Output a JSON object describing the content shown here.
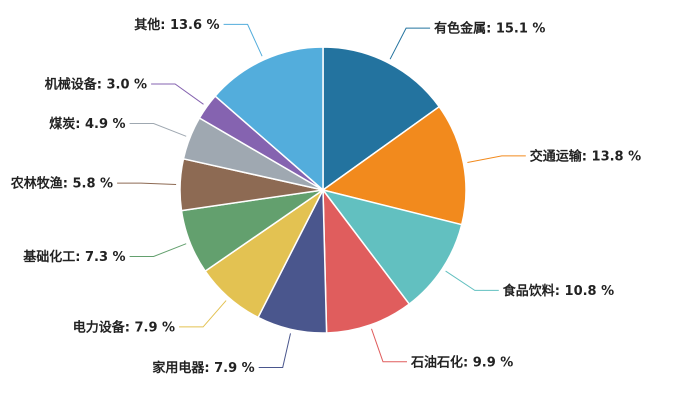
{
  "chart_data": {
    "type": "pie",
    "title": "",
    "slices": [
      {
        "label": "有色金属",
        "value": 15.1,
        "color": "#23739f"
      },
      {
        "label": "交通运输",
        "value": 13.8,
        "color": "#f28a1d"
      },
      {
        "label": "食品饮料",
        "value": 10.8,
        "color": "#62c0c0"
      },
      {
        "label": "石油石化",
        "value": 9.9,
        "color": "#e05d5d"
      },
      {
        "label": "家用电器",
        "value": 7.9,
        "color": "#4a568d"
      },
      {
        "label": "电力设备",
        "value": 7.9,
        "color": "#e3c252"
      },
      {
        "label": "基础化工",
        "value": 7.3,
        "color": "#63a06e"
      },
      {
        "label": "农林牧渔",
        "value": 5.8,
        "color": "#8d6a53"
      },
      {
        "label": "煤炭",
        "value": 4.9,
        "color": "#9fa8b1"
      },
      {
        "label": "机械设备",
        "value": 3.0,
        "color": "#8563b0"
      },
      {
        "label": "其他",
        "value": 13.6,
        "color": "#53addc"
      }
    ],
    "label_suffix": " %",
    "legend": "none"
  }
}
